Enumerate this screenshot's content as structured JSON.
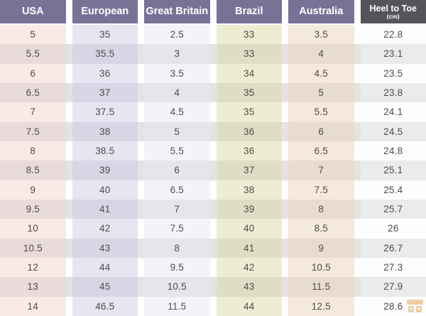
{
  "table": {
    "columns": [
      {
        "label": "USA"
      },
      {
        "label": "European"
      },
      {
        "label": "Great Britain"
      },
      {
        "label": "Brazil"
      },
      {
        "label": "Australia"
      },
      {
        "label": "Heel to Toe",
        "sublabel": "(cm)"
      }
    ],
    "rows": [
      [
        "5",
        "35",
        "2.5",
        "33",
        "3.5",
        "22.8"
      ],
      [
        "5.5",
        "35.5",
        "3",
        "33",
        "4",
        "23.1"
      ],
      [
        "6",
        "36",
        "3.5",
        "34",
        "4.5",
        "23.5"
      ],
      [
        "6.5",
        "37",
        "4",
        "35",
        "5",
        "23.8"
      ],
      [
        "7",
        "37.5",
        "4.5",
        "35",
        "5.5",
        "24.1"
      ],
      [
        "7.5",
        "38",
        "5",
        "36",
        "6",
        "24.5"
      ],
      [
        "8",
        "38.5",
        "5.5",
        "36",
        "6.5",
        "24.8"
      ],
      [
        "8.5",
        "39",
        "6",
        "37",
        "7",
        "25.1"
      ],
      [
        "9",
        "40",
        "6.5",
        "38",
        "7.5",
        "25.4"
      ],
      [
        "9.5",
        "41",
        "7",
        "39",
        "8",
        "25.7"
      ],
      [
        "10",
        "42",
        "7.5",
        "40",
        "8.5",
        "26"
      ],
      [
        "10.5",
        "43",
        "8",
        "41",
        "9",
        "26.7"
      ],
      [
        "12",
        "44",
        "9.5",
        "42",
        "10.5",
        "27.3"
      ],
      [
        "13",
        "45",
        "10.5",
        "43",
        "11.5",
        "27.9"
      ],
      [
        "14",
        "46.5",
        "11.5",
        "44",
        "12.5",
        "28.6"
      ]
    ]
  },
  "colors": {
    "header_bg": "#7a7197",
    "header_last_bg": "#56545a",
    "header_text": "#ffffff",
    "cell_text": "#4d4d4d",
    "col_usa_light": "#f9eae6",
    "col_european_light": "#e7e5f1",
    "col_great_britain_light": "#f4f3f8",
    "col_brazil_light": "#eeedd2",
    "col_australia_light": "#f5e8dc",
    "col_heel_to_toe_light": "#fdfdfd",
    "dark_row_gap": "#e3e3e3",
    "watermark": "#dd9440"
  },
  "icons": {
    "watermark": "shop-logo-icon"
  }
}
